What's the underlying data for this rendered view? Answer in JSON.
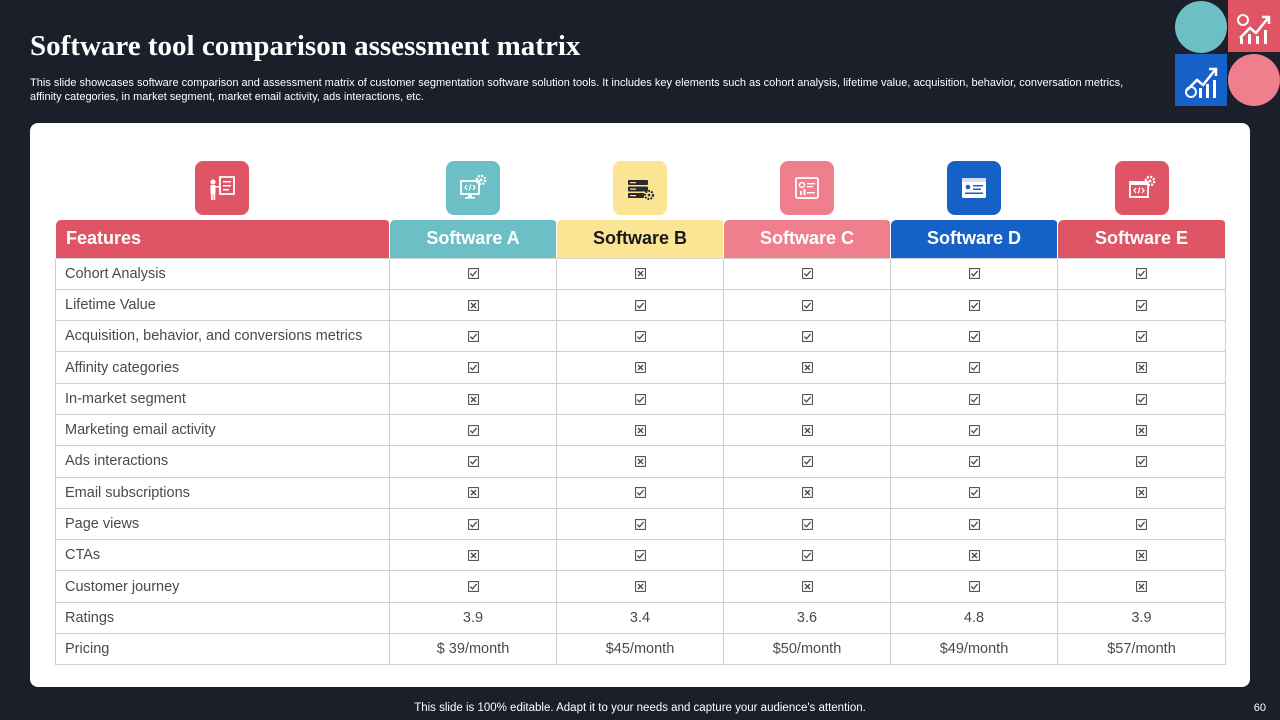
{
  "title": "Software tool comparison assessment matrix",
  "subtitle": "This slide showcases software comparison and assessment matrix of customer segmentation software solution tools. It includes key elements such as cohort analysis, lifetime value, acquisition, behavior, conversation metrics, affinity categories, in market segment, market email activity, ads interactions, etc.",
  "table": {
    "features_label": "Features",
    "columns": [
      {
        "label": "Software A",
        "bg": "#6cbfc4",
        "fg": "#ffffff",
        "icon": "code-screen-gear-icon"
      },
      {
        "label": "Software B",
        "bg": "#fbe594",
        "fg": "#1a1a1a",
        "icon": "server-gear-icon"
      },
      {
        "label": "Software C",
        "bg": "#f07f8e",
        "fg": "#ffffff",
        "icon": "dashboard-icon"
      },
      {
        "label": "Software D",
        "bg": "#1561c8",
        "fg": "#ffffff",
        "icon": "browser-window-icon"
      },
      {
        "label": "Software E",
        "bg": "#e05566",
        "fg": "#ffffff",
        "icon": "code-browser-gear-icon"
      }
    ],
    "features_icon": "presenter-board-icon",
    "rows": [
      {
        "feature": "Cohort Analysis",
        "values": [
          true,
          false,
          true,
          true,
          true
        ]
      },
      {
        "feature": "Lifetime Value",
        "values": [
          false,
          true,
          true,
          true,
          true
        ]
      },
      {
        "feature": "Acquisition, behavior, and conversions metrics",
        "values": [
          true,
          true,
          true,
          true,
          true
        ]
      },
      {
        "feature": "Affinity categories",
        "values": [
          true,
          false,
          false,
          true,
          false
        ]
      },
      {
        "feature": "In-market segment",
        "values": [
          false,
          true,
          true,
          true,
          true
        ]
      },
      {
        "feature": "Marketing email activity",
        "values": [
          true,
          false,
          false,
          true,
          false
        ]
      },
      {
        "feature": "Ads interactions",
        "values": [
          true,
          false,
          true,
          true,
          true
        ]
      },
      {
        "feature": "Email subscriptions",
        "values": [
          false,
          true,
          false,
          true,
          false
        ]
      },
      {
        "feature": "Page views",
        "values": [
          true,
          true,
          true,
          true,
          true
        ]
      },
      {
        "feature": "CTAs",
        "values": [
          false,
          true,
          true,
          false,
          false
        ]
      },
      {
        "feature": "Customer journey",
        "values": [
          true,
          false,
          false,
          true,
          false
        ]
      },
      {
        "feature": "Ratings",
        "values": [
          "3.9",
          "3.4",
          "3.6",
          "4.8",
          "3.9"
        ]
      },
      {
        "feature": "Pricing",
        "values": [
          "$ 39/month",
          "$45/month",
          "$50/month",
          "$49/month",
          "$57/month"
        ]
      }
    ]
  },
  "footer": "This slide is 100% editable. Adapt it to your needs and capture your audience's attention.",
  "page_number": "60",
  "colors": {
    "background": "#1b1f29",
    "features_header": "#e05566",
    "teal": "#6cbfc4",
    "yellow": "#fbe594",
    "pink": "#f07f8e",
    "blue": "#1561c8",
    "red": "#e05566"
  }
}
